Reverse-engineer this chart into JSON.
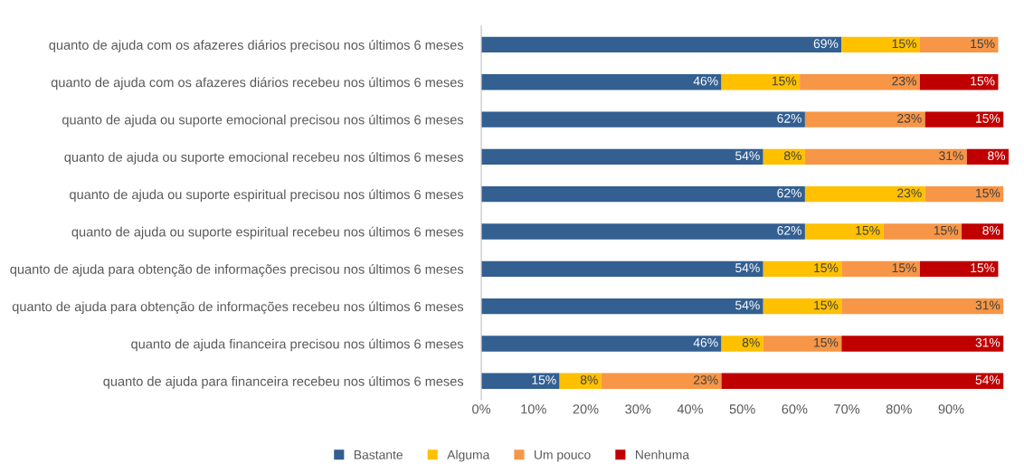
{
  "chart_data": {
    "type": "bar",
    "orientation": "horizontal",
    "stacked": true,
    "categories": [
      "quanto de ajuda com os afazeres diários precisou nos últimos 6 meses",
      "quanto de ajuda com os afazeres diários recebeu nos últimos 6 meses",
      "quanto de ajuda ou suporte emocional precisou nos últimos 6 meses",
      "quanto de ajuda ou suporte emocional recebeu nos últimos 6 meses",
      "quanto de ajuda ou suporte espiritual precisou nos últimos 6 meses",
      "quanto de ajuda ou suporte espiritual recebeu nos últimos 6 meses",
      "quanto de ajuda para obtenção de informações precisou nos últimos 6 meses",
      "quanto de ajuda para obtenção de informações recebeu nos últimos 6 meses",
      "quanto de ajuda financeira precisou nos últimos 6 meses",
      "quanto de ajuda para financeira recebeu nos últimos 6 meses"
    ],
    "series": [
      {
        "name": "Bastante",
        "color": "#335f91",
        "values": [
          69,
          46,
          62,
          54,
          62,
          62,
          54,
          54,
          46,
          15
        ],
        "value_labels": [
          "69%",
          "46%",
          "62%",
          "54%",
          "62%",
          "62%",
          "54%",
          "54%",
          "46%",
          "15%"
        ]
      },
      {
        "name": "Alguma",
        "color": "#ffc000",
        "values": [
          15,
          15,
          null,
          8,
          23,
          15,
          15,
          15,
          8,
          8
        ],
        "value_labels": [
          "15%",
          "15%",
          null,
          "8%",
          "23%",
          "15%",
          "15%",
          "15%",
          "8%",
          "8%"
        ]
      },
      {
        "name": "Um pouco",
        "color": "#f79646",
        "values": [
          15,
          23,
          23,
          31,
          15,
          15,
          15,
          31,
          15,
          23
        ],
        "value_labels": [
          "15%",
          "23%",
          "23%",
          "31%",
          "15%",
          "15%",
          "15%",
          "31%",
          "15%",
          "23%"
        ]
      },
      {
        "name": "Nenhuma",
        "color": "#c00000",
        "values": [
          null,
          15,
          15,
          8,
          null,
          8,
          15,
          null,
          31,
          54
        ],
        "value_labels": [
          null,
          "15%",
          "15%",
          "8%",
          null,
          "8%",
          "15%",
          null,
          "31%",
          "54%"
        ]
      }
    ],
    "xlim": [
      0,
      101
    ],
    "xticks": [
      {
        "value": 0,
        "label": "0%"
      },
      {
        "value": 10,
        "label": "10%"
      },
      {
        "value": 20,
        "label": "20%"
      },
      {
        "value": 30,
        "label": "30%"
      },
      {
        "value": 40,
        "label": "40%"
      },
      {
        "value": 50,
        "label": "50%"
      },
      {
        "value": 60,
        "label": "60%"
      },
      {
        "value": 70,
        "label": "70%"
      },
      {
        "value": 80,
        "label": "80%"
      },
      {
        "value": 90,
        "label": "90%"
      }
    ],
    "legend": "bottom",
    "grid": false
  }
}
